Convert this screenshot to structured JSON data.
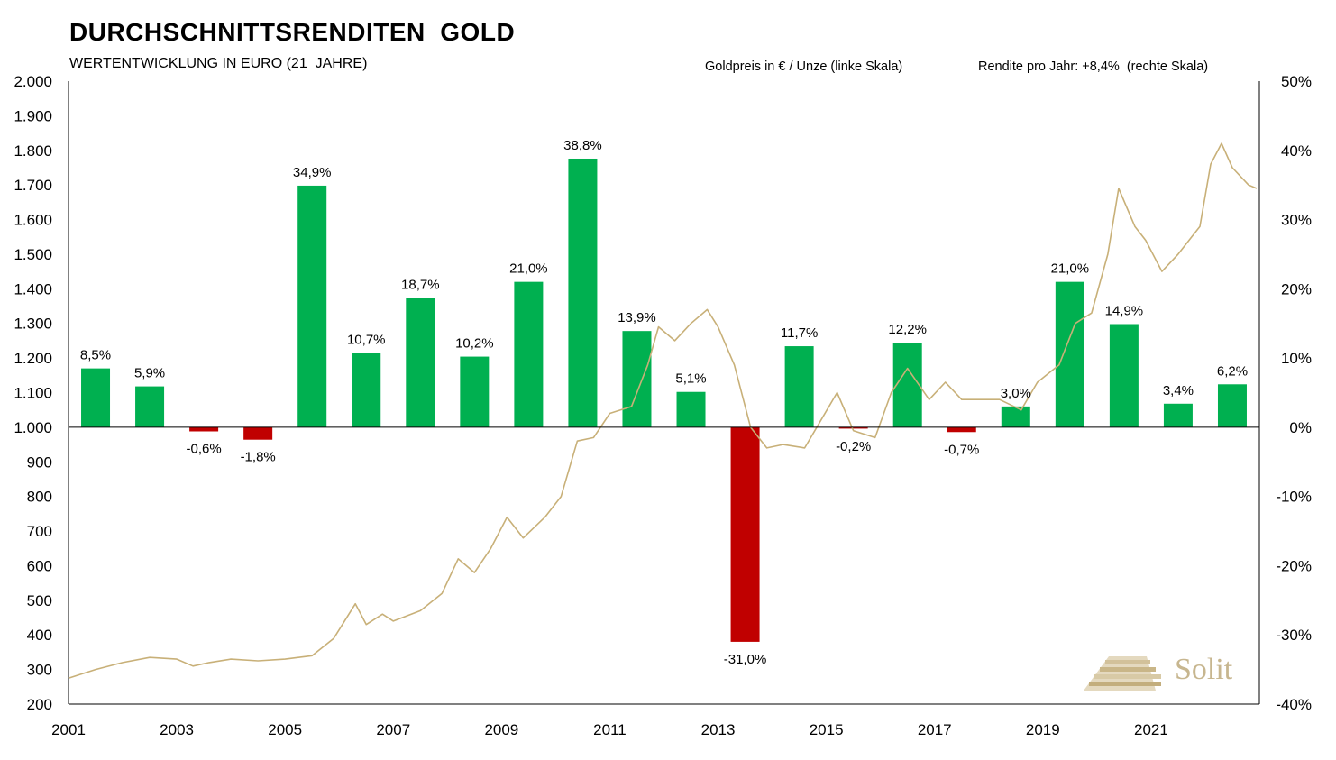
{
  "header": {
    "title": "DURCHSCHNITTSRENDITEN  GOLD",
    "subtitle": "WERTENTWICKLUNG IN EURO (21  JAHRE)",
    "legend_left": "Goldpreis in € / Unze (linke Skala)",
    "legend_right": "Rendite pro Jahr: +8,4%  (rechte Skala)"
  },
  "brand": {
    "logo_text": "Solit"
  },
  "colors": {
    "positive_bar": "#00b050",
    "negative_bar": "#c00000",
    "gold_line": "#c8b078",
    "axis": "#000000",
    "logo": "#c7b68f"
  },
  "chart_data": {
    "type": "bar",
    "title": "DURCHSCHNITTSRENDITEN  GOLD",
    "subtitle": "WERTENTWICKLUNG IN EURO (21  JAHRE)",
    "categories": [
      "2001",
      "2002",
      "2003",
      "2004",
      "2005",
      "2006",
      "2007",
      "2008",
      "2009",
      "2010",
      "2011",
      "2012",
      "2013",
      "2014",
      "2015",
      "2016",
      "2017",
      "2018",
      "2019",
      "2020",
      "2021",
      "2022"
    ],
    "series": [
      {
        "name": "Rendite pro Jahr: +8,4%  (rechte Skala)",
        "axis": "right",
        "values": [
          8.5,
          5.9,
          -0.6,
          -1.8,
          34.9,
          10.7,
          18.7,
          10.2,
          21.0,
          38.8,
          13.9,
          5.1,
          -31.0,
          11.7,
          -0.2,
          12.2,
          -0.7,
          3.0,
          21.0,
          14.9,
          3.4,
          6.2
        ],
        "labels": [
          "8,5%",
          "5,9%",
          "-0,6%",
          "-1,8%",
          "34,9%",
          "10,7%",
          "18,7%",
          "10,2%",
          "21,0%",
          "38,8%",
          "13,9%",
          "5,1%",
          "-31,0%",
          "11,7%",
          "-0,2%",
          "12,2%",
          "-0,7%",
          "3,0%",
          "21,0%",
          "14,9%",
          "3,4%",
          "6,2%"
        ]
      },
      {
        "name": "Goldpreis in € / Unze (linke Skala)",
        "type": "line",
        "axis": "left",
        "points": [
          [
            2001.0,
            275
          ],
          [
            2001.5,
            300
          ],
          [
            2002.0,
            320
          ],
          [
            2002.5,
            335
          ],
          [
            2003.0,
            330
          ],
          [
            2003.3,
            310
          ],
          [
            2003.6,
            320
          ],
          [
            2004.0,
            330
          ],
          [
            2004.5,
            325
          ],
          [
            2005.0,
            330
          ],
          [
            2005.5,
            340
          ],
          [
            2005.9,
            390
          ],
          [
            2006.3,
            490
          ],
          [
            2006.5,
            430
          ],
          [
            2006.8,
            460
          ],
          [
            2007.0,
            440
          ],
          [
            2007.5,
            470
          ],
          [
            2007.9,
            520
          ],
          [
            2008.2,
            620
          ],
          [
            2008.5,
            580
          ],
          [
            2008.8,
            650
          ],
          [
            2009.1,
            740
          ],
          [
            2009.4,
            680
          ],
          [
            2009.8,
            740
          ],
          [
            2010.1,
            800
          ],
          [
            2010.4,
            960
          ],
          [
            2010.7,
            970
          ],
          [
            2011.0,
            1040
          ],
          [
            2011.4,
            1060
          ],
          [
            2011.7,
            1180
          ],
          [
            2011.9,
            1290
          ],
          [
            2012.2,
            1250
          ],
          [
            2012.5,
            1300
          ],
          [
            2012.8,
            1340
          ],
          [
            2013.0,
            1290
          ],
          [
            2013.3,
            1180
          ],
          [
            2013.6,
            1000
          ],
          [
            2013.9,
            940
          ],
          [
            2014.2,
            950
          ],
          [
            2014.6,
            940
          ],
          [
            2014.9,
            1020
          ],
          [
            2015.2,
            1100
          ],
          [
            2015.5,
            990
          ],
          [
            2015.9,
            970
          ],
          [
            2016.2,
            1100
          ],
          [
            2016.5,
            1170
          ],
          [
            2016.9,
            1080
          ],
          [
            2017.2,
            1130
          ],
          [
            2017.5,
            1080
          ],
          [
            2017.9,
            1080
          ],
          [
            2018.2,
            1080
          ],
          [
            2018.6,
            1050
          ],
          [
            2018.9,
            1130
          ],
          [
            2019.3,
            1180
          ],
          [
            2019.6,
            1300
          ],
          [
            2019.9,
            1330
          ],
          [
            2020.2,
            1500
          ],
          [
            2020.4,
            1690
          ],
          [
            2020.7,
            1580
          ],
          [
            2020.9,
            1540
          ],
          [
            2021.2,
            1450
          ],
          [
            2021.5,
            1500
          ],
          [
            2021.9,
            1580
          ],
          [
            2022.1,
            1760
          ],
          [
            2022.3,
            1820
          ],
          [
            2022.5,
            1750
          ],
          [
            2022.8,
            1700
          ],
          [
            2022.95,
            1690
          ]
        ]
      }
    ],
    "x": {
      "tick_labels": [
        "2001",
        "2003",
        "2005",
        "2007",
        "2009",
        "2011",
        "2013",
        "2015",
        "2017",
        "2019",
        "2021"
      ],
      "range": [
        2001,
        2023
      ]
    },
    "y_left": {
      "range": [
        200,
        2000
      ],
      "tick_labels": [
        "2.000",
        "1.900",
        "1.800",
        "1.700",
        "1.600",
        "1.500",
        "1.400",
        "1.300",
        "1.200",
        "1.100",
        "1.000",
        "900",
        "800",
        "700",
        "600",
        "500",
        "400",
        "300",
        "200"
      ]
    },
    "y_right": {
      "range": [
        -40,
        50
      ],
      "tick_labels": [
        "50%",
        "40%",
        "30%",
        "20%",
        "10%",
        "0%",
        "-10%",
        "-20%",
        "-30%",
        "-40%"
      ]
    },
    "grid": false,
    "legend": "top-right"
  }
}
